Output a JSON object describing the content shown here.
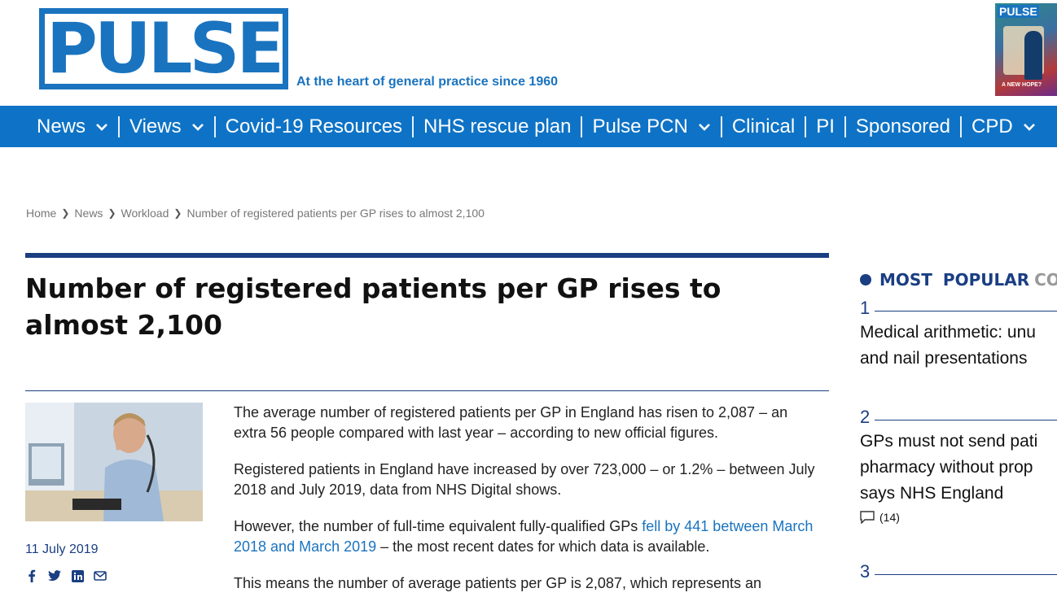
{
  "header": {
    "logo_text": "PULSE",
    "tagline": "At the heart of general practice since 1960",
    "cover": {
      "title": "PULSE",
      "subtitle": "A NEW HOPE?"
    }
  },
  "nav": [
    {
      "label": "News",
      "dropdown": true
    },
    {
      "label": "Views",
      "dropdown": true
    },
    {
      "label": "Covid-19 Resources",
      "dropdown": false
    },
    {
      "label": "NHS rescue plan",
      "dropdown": false
    },
    {
      "label": "Pulse PCN",
      "dropdown": true
    },
    {
      "label": "Clinical",
      "dropdown": false
    },
    {
      "label": "PI",
      "dropdown": false
    },
    {
      "label": "Sponsored",
      "dropdown": false
    },
    {
      "label": "CPD",
      "dropdown": true
    }
  ],
  "breadcrumb": [
    "Home",
    "News",
    "Workload",
    "Number of registered patients per GP rises to almost 2,100"
  ],
  "article": {
    "title": "Number of registered patients per GP rises to almost 2,100",
    "date": "11 July 2019",
    "p1": "The average number of registered patients per GP in England has risen to 2,087 – an extra 56 people compared with last year – according to new official figures.",
    "p2": "Registered patients in England have increased by over 723,000 – or 1.2% – between July 2018 and July 2019, data from NHS Digital shows.",
    "p3_before": "However, the number of full-time equivalent fully-qualified GPs ",
    "p3_link": "fell by 441 between March 2018 and March 2019",
    "p3_after": " – the most recent dates for which data is available.",
    "p4": "This means the number of average patients per GP is 2,087, which represents an"
  },
  "share_icons": [
    "facebook-icon",
    "twitter-icon",
    "linkedin-icon",
    "email-icon"
  ],
  "sidebar": {
    "heading_1": "MOST",
    "heading_2": "POPULAR",
    "heading_3": "CO",
    "items": [
      {
        "num": "1",
        "lines": [
          "Medical arithmetic: unu",
          "and nail presentations"
        ],
        "comments": ""
      },
      {
        "num": "2",
        "lines": [
          "GPs must not send pati",
          "pharmacy without prop",
          "says NHS England"
        ],
        "comments": "(14)"
      },
      {
        "num": "3",
        "lines": [],
        "comments": ""
      }
    ]
  }
}
